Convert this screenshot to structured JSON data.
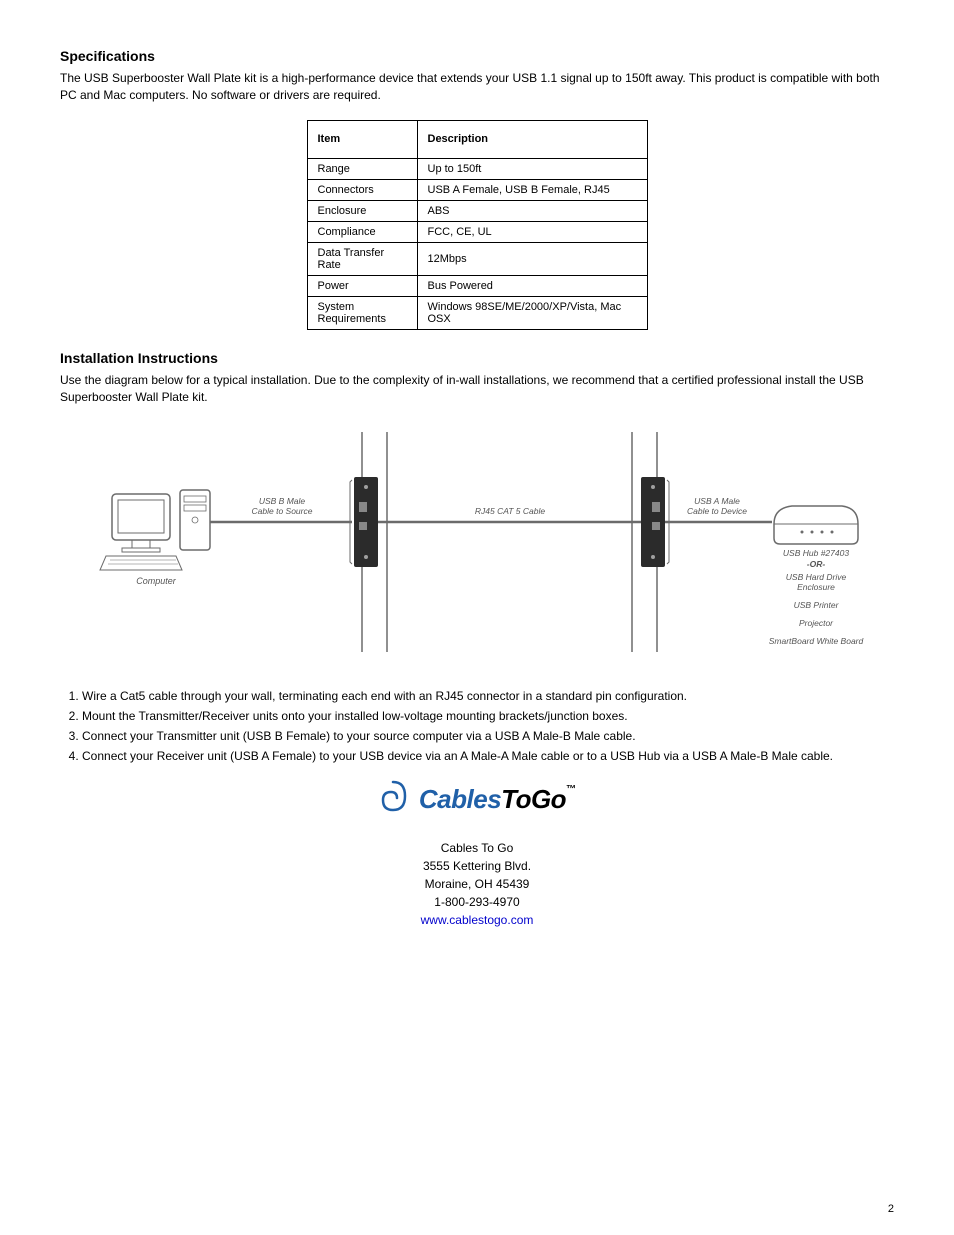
{
  "specs": {
    "title": "Specifications",
    "intro": "The USB Superbooster Wall Plate kit is a high-performance device that extends your USB 1.1 signal up to 150ft away. This product is compatible with both PC and Mac computers. No software or drivers are required.",
    "table": {
      "head": {
        "c1": "Item",
        "c2": "Description"
      },
      "rows": [
        [
          "Range",
          "Up to 150ft"
        ],
        [
          "Connectors",
          "USB A Female, USB B Female, RJ45"
        ],
        [
          "Enclosure",
          "ABS"
        ],
        [
          "Compliance",
          "FCC, CE, UL"
        ],
        [
          "Data Transfer Rate",
          "12Mbps"
        ],
        [
          "Power",
          "Bus Powered"
        ],
        [
          "System Requirements",
          "Windows 98SE/ME/2000/XP/Vista, Mac OSX"
        ]
      ]
    }
  },
  "install": {
    "title": "Installation Instructions",
    "para": "Use the diagram below for a typical installation. Due to the complexity of in-wall installations, we recommend that a certified professional install the USB Superbooster Wall Plate kit.",
    "diagram": {
      "computer_label": "Computer",
      "usb_b_label": "USB B Male\nCable to Source",
      "rj45_label": "RJ45 CAT 5 Cable",
      "usb_a_label": "USB A Male\nCable to Device",
      "hub_label": "USB Hub #27403",
      "or_label": "-OR-",
      "devices": [
        "USB Hard Drive Enclosure",
        "USB Printer",
        "Projector",
        "SmartBoard White Board"
      ],
      "colors": {
        "line": "#6b6b6b",
        "fill_light": "#ffffff",
        "fill_dark": "#2b2b2b",
        "text": "#555555"
      }
    },
    "steps": [
      "Wire a Cat5 cable through your wall, terminating each end with an RJ45 connector in a standard pin configuration.",
      "Mount the Transmitter/Receiver units onto your installed low-voltage mounting brackets/junction boxes.",
      "Connect your Transmitter unit (USB B Female) to your source computer via a USB A Male-B Male cable.",
      "Connect your Receiver unit (USB A Female) to your USB device via an A Male-A Male cable or to a USB Hub via a USB A Male-B Male cable."
    ]
  },
  "company": {
    "logo_part1": "Cables",
    "logo_part2": "ToGo",
    "logo_tm": "™",
    "name": "Cables To Go",
    "addr1": "3555 Kettering Blvd.",
    "addr2": "Moraine, OH 45439",
    "phone": "1-800-293-4970",
    "site": "www.cablestogo.com",
    "swirl_color": "#2060a8"
  },
  "page_num": "2"
}
